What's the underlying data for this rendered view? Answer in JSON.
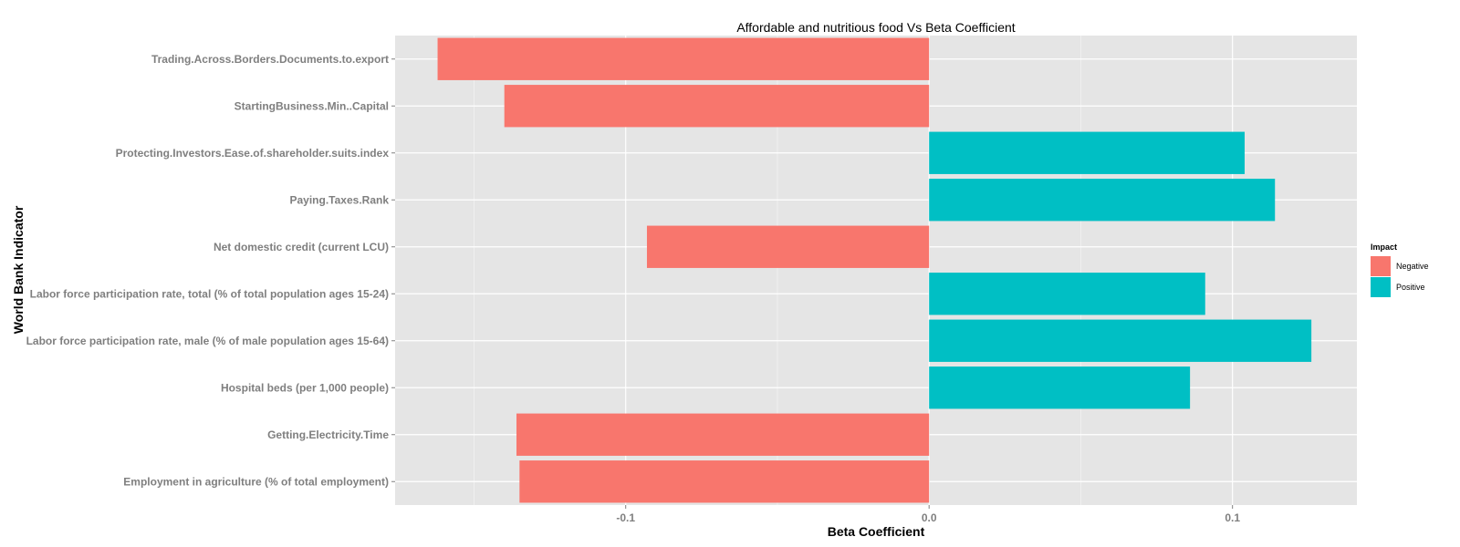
{
  "chart_data": {
    "type": "bar",
    "orientation": "horizontal",
    "title": "Affordable and nutritious food Vs Beta Coefficient",
    "xlabel": "Beta Coefficient",
    "ylabel": "World Bank Indicator",
    "xlim": [
      -0.176,
      0.141
    ],
    "x_ticks": [
      -0.1,
      0.0,
      0.1
    ],
    "x_tick_labels": [
      "-0.1",
      "0.0",
      "0.1"
    ],
    "grid": true,
    "legend": {
      "title": "Impact",
      "position": "right",
      "entries": [
        {
          "label": "Negative",
          "color": "#F8766D"
        },
        {
          "label": "Positive",
          "color": "#00BFC4"
        }
      ]
    },
    "categories": [
      "Trading.Across.Borders.Documents.to.export",
      "StartingBusiness.Min..Capital",
      "Protecting.Investors.Ease.of.shareholder.suits.index",
      "Paying.Taxes.Rank",
      "Net domestic credit (current LCU)",
      "Labor force participation rate, total (% of total population ages 15-24)",
      "Labor force participation rate, male (% of male population ages 15-64)",
      "Hospital beds (per 1,000 people)",
      "Getting.Electricity.Time",
      "Employment in agriculture (% of total employment)"
    ],
    "values": [
      -0.162,
      -0.14,
      0.104,
      0.114,
      -0.093,
      0.091,
      0.126,
      0.086,
      -0.136,
      -0.135
    ],
    "impact": [
      "Negative",
      "Negative",
      "Positive",
      "Positive",
      "Negative",
      "Positive",
      "Positive",
      "Positive",
      "Negative",
      "Negative"
    ]
  }
}
